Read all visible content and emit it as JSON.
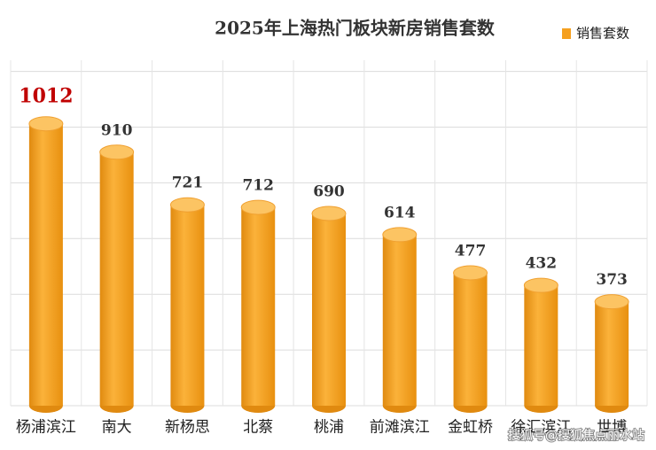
{
  "chart_data": {
    "type": "bar",
    "title": "2025年上海热门板块新房销售套数",
    "categories": [
      "杨浦滨江",
      "南大",
      "新杨思",
      "北蔡",
      "桃浦",
      "前滩滨江",
      "金虹桥",
      "徐汇滨江",
      "世博"
    ],
    "series": [
      {
        "name": "销售套数",
        "color": "#f5a020",
        "values": [
          1012,
          910,
          721,
          712,
          690,
          614,
          477,
          432,
          373
        ],
        "value_label_colors": [
          "#c00000",
          "#333333",
          "#333333",
          "#333333",
          "#333333",
          "#333333",
          "#333333",
          "#333333",
          "#333333"
        ]
      }
    ],
    "ylim": [
      0,
      1240
    ],
    "yticks": [
      0,
      200,
      400,
      600,
      800,
      1000,
      1200
    ],
    "grid": true
  },
  "watermark": "搜狐号@搜狐焦点丽水站"
}
